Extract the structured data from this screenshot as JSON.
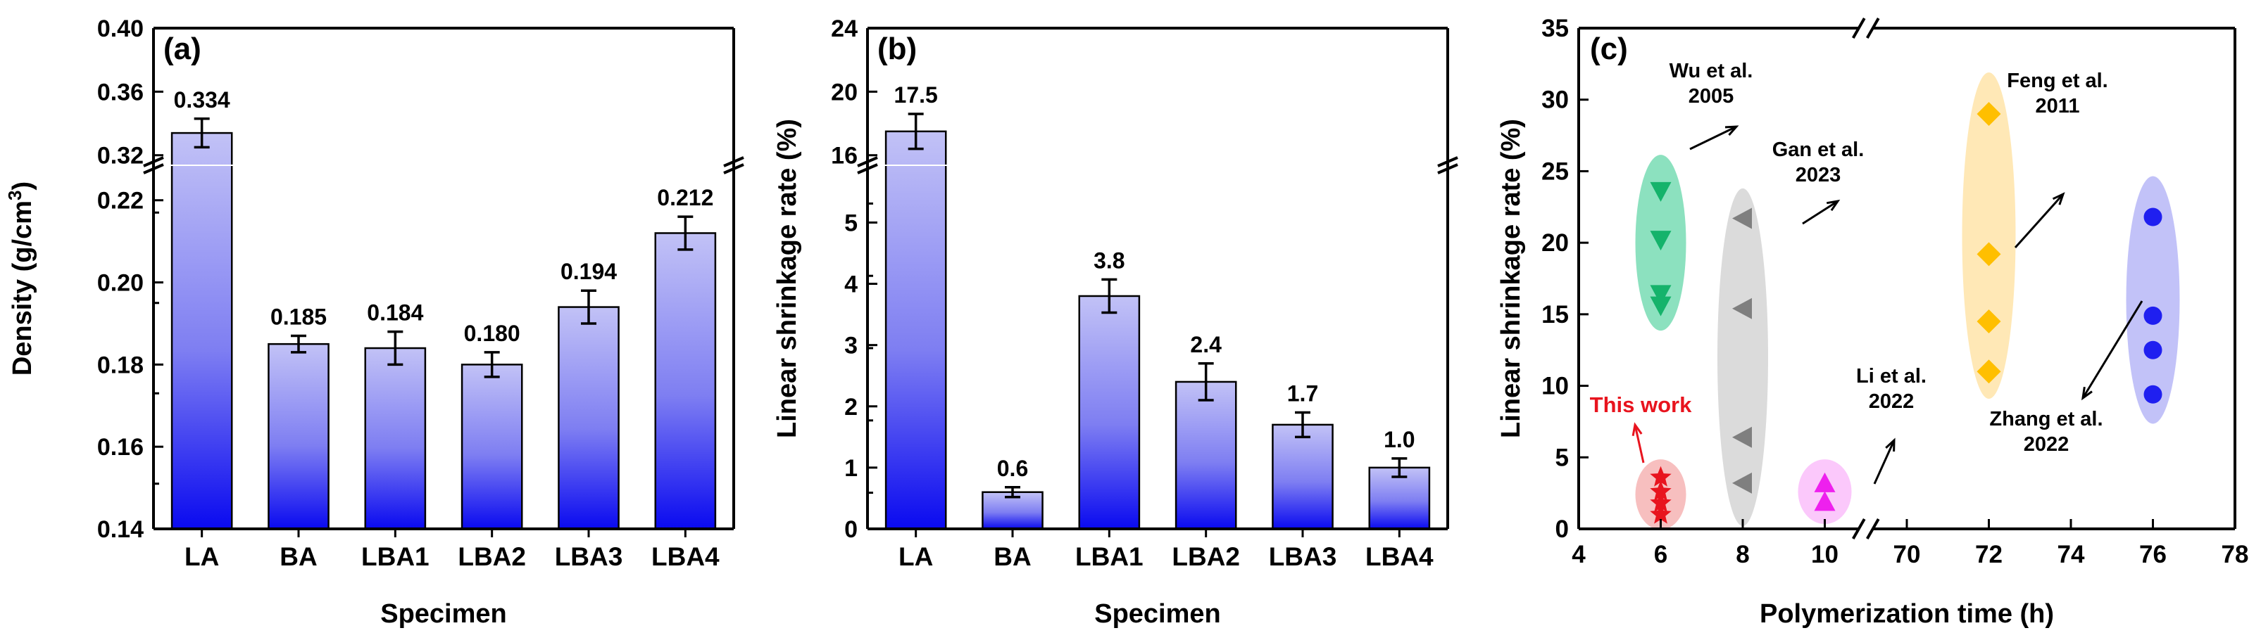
{
  "chart_data": [
    {
      "panel": "(a)",
      "type": "bar",
      "categories": [
        "LA",
        "BA",
        "LBA1",
        "LBA2",
        "LBA3",
        "LBA4"
      ],
      "values": [
        0.334,
        0.185,
        0.184,
        0.18,
        0.194,
        0.212
      ],
      "errors": [
        0.009,
        0.002,
        0.004,
        0.003,
        0.004,
        0.004
      ],
      "data_labels": [
        "0.334",
        "0.185",
        "0.184",
        "0.180",
        "0.194",
        "0.212"
      ],
      "xlabel": "Specimen",
      "ylabel": "Density (g/cm",
      "ylabel_sup": "3",
      "ylabel_close": ")",
      "ylim": [
        0.14,
        0.4
      ],
      "axis_break": [
        0.228,
        0.315
      ],
      "lower_ticks": [
        "0.14",
        "0.16",
        "0.18",
        "0.20",
        "0.22"
      ],
      "upper_ticks": [
        "0.32",
        "0.36",
        "0.40"
      ]
    },
    {
      "panel": "(b)",
      "type": "bar",
      "categories": [
        "LA",
        "BA",
        "LBA1",
        "LBA2",
        "LBA3",
        "LBA4"
      ],
      "values": [
        17.5,
        0.6,
        3.8,
        2.4,
        1.7,
        1.0
      ],
      "errors": [
        1.1,
        0.08,
        0.27,
        0.3,
        0.2,
        0.15
      ],
      "data_labels": [
        "17.5",
        "0.6",
        "3.8",
        "2.4",
        "1.7",
        "1.0"
      ],
      "xlabel": "Specimen",
      "ylabel": "Linear shrinkage rate (%)",
      "ylim": [
        0,
        24
      ],
      "axis_break": [
        5.9,
        15.5
      ],
      "lower_ticks": [
        "0",
        "1",
        "2",
        "3",
        "4",
        "5"
      ],
      "upper_ticks": [
        "16",
        "20",
        "24"
      ]
    },
    {
      "panel": "(c)",
      "type": "scatter",
      "xlabel": "Polymerization time (h)",
      "ylabel": "Linear shrinkage rate (%)",
      "ylim": [
        0,
        35
      ],
      "x_ticks": [
        "4",
        "6",
        "8",
        "10",
        "70",
        "72",
        "74",
        "76",
        "78"
      ],
      "y_ticks": [
        "0",
        "5",
        "10",
        "15",
        "20",
        "25",
        "30",
        "35"
      ],
      "axis_break_between": [
        "10",
        "70"
      ],
      "series": [
        {
          "name": "This work",
          "marker": "star",
          "color": "#e8141e",
          "x": [
            6,
            6,
            6,
            6
          ],
          "y": [
            1.0,
            1.8,
            2.6,
            3.6
          ]
        },
        {
          "name": "Wu et al. 2005",
          "marker": "triangle-down",
          "color": "#15b36b",
          "x": [
            6,
            6,
            6,
            6
          ],
          "y": [
            15.6,
            16.4,
            20.2,
            23.6
          ]
        },
        {
          "name": "Gan et al. 2023",
          "marker": "triangle-left",
          "color": "#7f7f7f",
          "x": [
            8,
            8,
            8,
            8
          ],
          "y": [
            3.2,
            6.4,
            15.4,
            21.7
          ]
        },
        {
          "name": "Li et al. 2022",
          "marker": "triangle-up",
          "color": "#ee20ee",
          "x": [
            10,
            10
          ],
          "y": [
            1.9,
            3.2
          ]
        },
        {
          "name": "Feng et al. 2011",
          "marker": "diamond",
          "color": "#ffbf00",
          "x": [
            72,
            72,
            72,
            72
          ],
          "y": [
            11.0,
            14.5,
            19.2,
            29.0
          ]
        },
        {
          "name": "Zhang et al. 2022",
          "marker": "circle",
          "color": "#1f1ff0",
          "x": [
            76,
            76,
            76,
            76
          ],
          "y": [
            9.4,
            12.5,
            14.9,
            21.8
          ]
        }
      ],
      "annotations": [
        {
          "line1": "Wu et al.",
          "line2": "2005"
        },
        {
          "line1": "Gan et al.",
          "line2": "2023"
        },
        {
          "line1": "Li et al.",
          "line2": "2022"
        },
        {
          "line1": "Feng et al.",
          "line2": "2011"
        },
        {
          "line1": "Zhang et al.",
          "line2": "2022"
        },
        {
          "line1": "This work",
          "color": "#e8141e"
        }
      ]
    }
  ]
}
